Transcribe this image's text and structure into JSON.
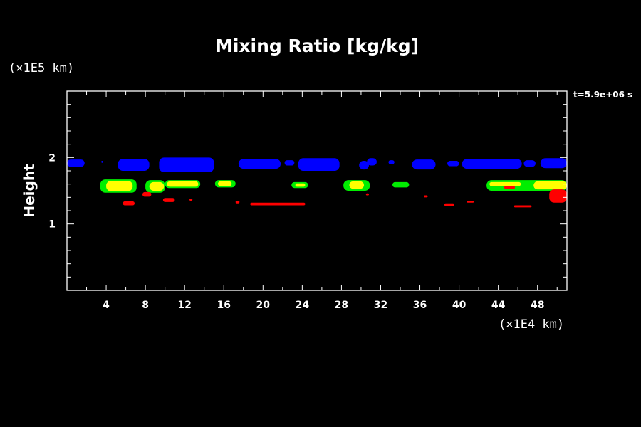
{
  "chart_data": {
    "type": "heatmap",
    "title": "Mixing Ratio [kg/kg]",
    "xlabel": "",
    "ylabel": "Height",
    "x_unit_label": "(×1E4 km)",
    "y_unit_label": "(×1E5 km)",
    "time_label": "t=5.9e+06 s",
    "xlim": [
      0,
      51
    ],
    "ylim": [
      0,
      3
    ],
    "x_ticks": [
      4,
      8,
      12,
      16,
      20,
      24,
      28,
      32,
      36,
      40,
      44,
      48
    ],
    "y_ticks": [
      1,
      2
    ],
    "grid": false,
    "colors": {
      "background": "#000000",
      "frame": "#ffffff",
      "blue": "#0000ff",
      "green": "#00ee00",
      "yellow": "#ffff00",
      "red": "#ff0000"
    },
    "bands": [
      {
        "name": "blue",
        "color": "#0000ff",
        "patches": [
          {
            "x0": 0.0,
            "x1": 1.8,
            "y0": 1.86,
            "y1": 1.97
          },
          {
            "x0": 3.5,
            "x1": 3.7,
            "y0": 1.92,
            "y1": 1.95
          },
          {
            "x0": 5.2,
            "x1": 8.4,
            "y0": 1.8,
            "y1": 1.98
          },
          {
            "x0": 9.4,
            "x1": 15.0,
            "y0": 1.78,
            "y1": 2.0
          },
          {
            "x0": 17.5,
            "x1": 21.8,
            "y0": 1.83,
            "y1": 1.98
          },
          {
            "x0": 22.2,
            "x1": 23.2,
            "y0": 1.88,
            "y1": 1.96
          },
          {
            "x0": 23.6,
            "x1": 27.8,
            "y0": 1.8,
            "y1": 1.99
          },
          {
            "x0": 29.8,
            "x1": 30.8,
            "y0": 1.82,
            "y1": 1.95
          },
          {
            "x0": 30.6,
            "x1": 31.6,
            "y0": 1.88,
            "y1": 1.99
          },
          {
            "x0": 32.8,
            "x1": 33.4,
            "y0": 1.9,
            "y1": 1.96
          },
          {
            "x0": 35.2,
            "x1": 37.6,
            "y0": 1.82,
            "y1": 1.97
          },
          {
            "x0": 38.8,
            "x1": 40.0,
            "y0": 1.87,
            "y1": 1.95
          },
          {
            "x0": 40.3,
            "x1": 46.4,
            "y0": 1.83,
            "y1": 1.98
          },
          {
            "x0": 46.6,
            "x1": 47.8,
            "y0": 1.86,
            "y1": 1.96
          },
          {
            "x0": 48.3,
            "x1": 51.0,
            "y0": 1.84,
            "y1": 1.99
          }
        ]
      },
      {
        "name": "green",
        "color": "#00ee00",
        "patches": [
          {
            "x0": 3.4,
            "x1": 7.1,
            "y0": 1.47,
            "y1": 1.67
          },
          {
            "x0": 8.0,
            "x1": 10.0,
            "y0": 1.47,
            "y1": 1.66
          },
          {
            "x0": 10.0,
            "x1": 13.6,
            "y0": 1.54,
            "y1": 1.66
          },
          {
            "x0": 15.1,
            "x1": 17.2,
            "y0": 1.55,
            "y1": 1.66
          },
          {
            "x0": 22.9,
            "x1": 24.6,
            "y0": 1.54,
            "y1": 1.63
          },
          {
            "x0": 28.2,
            "x1": 30.9,
            "y0": 1.5,
            "y1": 1.66
          },
          {
            "x0": 33.2,
            "x1": 34.9,
            "y0": 1.55,
            "y1": 1.63
          },
          {
            "x0": 42.8,
            "x1": 51.0,
            "y0": 1.5,
            "y1": 1.66
          }
        ]
      },
      {
        "name": "yellow",
        "color": "#ffff00",
        "patches": [
          {
            "x0": 4.0,
            "x1": 6.7,
            "y0": 1.49,
            "y1": 1.65
          },
          {
            "x0": 8.4,
            "x1": 9.9,
            "y0": 1.5,
            "y1": 1.63
          },
          {
            "x0": 10.2,
            "x1": 13.4,
            "y0": 1.56,
            "y1": 1.64
          },
          {
            "x0": 15.4,
            "x1": 16.8,
            "y0": 1.57,
            "y1": 1.64
          },
          {
            "x0": 23.3,
            "x1": 24.3,
            "y0": 1.56,
            "y1": 1.61
          },
          {
            "x0": 28.8,
            "x1": 30.3,
            "y0": 1.53,
            "y1": 1.64
          },
          {
            "x0": 43.1,
            "x1": 46.3,
            "y0": 1.57,
            "y1": 1.63
          },
          {
            "x0": 47.6,
            "x1": 51.0,
            "y0": 1.52,
            "y1": 1.64
          }
        ]
      },
      {
        "name": "red",
        "color": "#ff0000",
        "patches": [
          {
            "x0": 5.7,
            "x1": 6.9,
            "y0": 1.28,
            "y1": 1.34
          },
          {
            "x0": 7.7,
            "x1": 8.6,
            "y0": 1.41,
            "y1": 1.48
          },
          {
            "x0": 9.8,
            "x1": 11.0,
            "y0": 1.33,
            "y1": 1.39
          },
          {
            "x0": 12.5,
            "x1": 12.8,
            "y0": 1.35,
            "y1": 1.38
          },
          {
            "x0": 17.2,
            "x1": 17.6,
            "y0": 1.31,
            "y1": 1.35
          },
          {
            "x0": 18.7,
            "x1": 24.3,
            "y0": 1.28,
            "y1": 1.32
          },
          {
            "x0": 30.5,
            "x1": 30.8,
            "y0": 1.43,
            "y1": 1.46
          },
          {
            "x0": 36.4,
            "x1": 36.8,
            "y0": 1.4,
            "y1": 1.43
          },
          {
            "x0": 38.5,
            "x1": 39.5,
            "y0": 1.27,
            "y1": 1.31
          },
          {
            "x0": 40.8,
            "x1": 41.5,
            "y0": 1.32,
            "y1": 1.35
          },
          {
            "x0": 44.6,
            "x1": 45.7,
            "y0": 1.53,
            "y1": 1.57
          },
          {
            "x0": 45.6,
            "x1": 47.4,
            "y0": 1.25,
            "y1": 1.28
          },
          {
            "x0": 49.2,
            "x1": 51.0,
            "y0": 1.32,
            "y1": 1.52
          }
        ]
      }
    ]
  }
}
